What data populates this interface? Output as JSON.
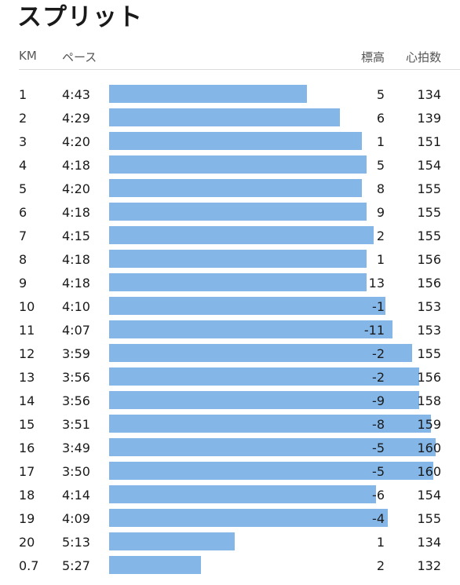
{
  "title": "スプリット",
  "columns": {
    "km": "KM",
    "pace": "ペース",
    "elevation": "標高",
    "heart_rate": "心拍数"
  },
  "splits": [
    {
      "km": "1",
      "pace": "4:43",
      "elevation": "5",
      "heart_rate": "134",
      "pace_seconds": 283
    },
    {
      "km": "2",
      "pace": "4:29",
      "elevation": "6",
      "heart_rate": "139",
      "pace_seconds": 269
    },
    {
      "km": "3",
      "pace": "4:20",
      "elevation": "1",
      "heart_rate": "151",
      "pace_seconds": 260
    },
    {
      "km": "4",
      "pace": "4:18",
      "elevation": "5",
      "heart_rate": "154",
      "pace_seconds": 258
    },
    {
      "km": "5",
      "pace": "4:20",
      "elevation": "8",
      "heart_rate": "155",
      "pace_seconds": 260
    },
    {
      "km": "6",
      "pace": "4:18",
      "elevation": "9",
      "heart_rate": "155",
      "pace_seconds": 258
    },
    {
      "km": "7",
      "pace": "4:15",
      "elevation": "2",
      "heart_rate": "155",
      "pace_seconds": 255
    },
    {
      "km": "8",
      "pace": "4:18",
      "elevation": "1",
      "heart_rate": "156",
      "pace_seconds": 258
    },
    {
      "km": "9",
      "pace": "4:18",
      "elevation": "13",
      "heart_rate": "156",
      "pace_seconds": 258
    },
    {
      "km": "10",
      "pace": "4:10",
      "elevation": "-1",
      "heart_rate": "153",
      "pace_seconds": 250
    },
    {
      "km": "11",
      "pace": "4:07",
      "elevation": "-11",
      "heart_rate": "153",
      "pace_seconds": 247
    },
    {
      "km": "12",
      "pace": "3:59",
      "elevation": "-2",
      "heart_rate": "155",
      "pace_seconds": 239
    },
    {
      "km": "13",
      "pace": "3:56",
      "elevation": "-2",
      "heart_rate": "156",
      "pace_seconds": 236
    },
    {
      "km": "14",
      "pace": "3:56",
      "elevation": "-9",
      "heart_rate": "158",
      "pace_seconds": 236
    },
    {
      "km": "15",
      "pace": "3:51",
      "elevation": "-8",
      "heart_rate": "159",
      "pace_seconds": 231
    },
    {
      "km": "16",
      "pace": "3:49",
      "elevation": "-5",
      "heart_rate": "160",
      "pace_seconds": 229
    },
    {
      "km": "17",
      "pace": "3:50",
      "elevation": "-5",
      "heart_rate": "160",
      "pace_seconds": 230
    },
    {
      "km": "18",
      "pace": "4:14",
      "elevation": "-6",
      "heart_rate": "154",
      "pace_seconds": 254
    },
    {
      "km": "19",
      "pace": "4:09",
      "elevation": "-4",
      "heart_rate": "155",
      "pace_seconds": 249
    },
    {
      "km": "20",
      "pace": "5:13",
      "elevation": "1",
      "heart_rate": "134",
      "pace_seconds": 313
    },
    {
      "km": "0.7",
      "pace": "5:27",
      "elevation": "2",
      "heart_rate": "132",
      "pace_seconds": 327
    }
  ],
  "colors": {
    "bar": "#84b7e8",
    "divider": "#dcdcdc"
  }
}
